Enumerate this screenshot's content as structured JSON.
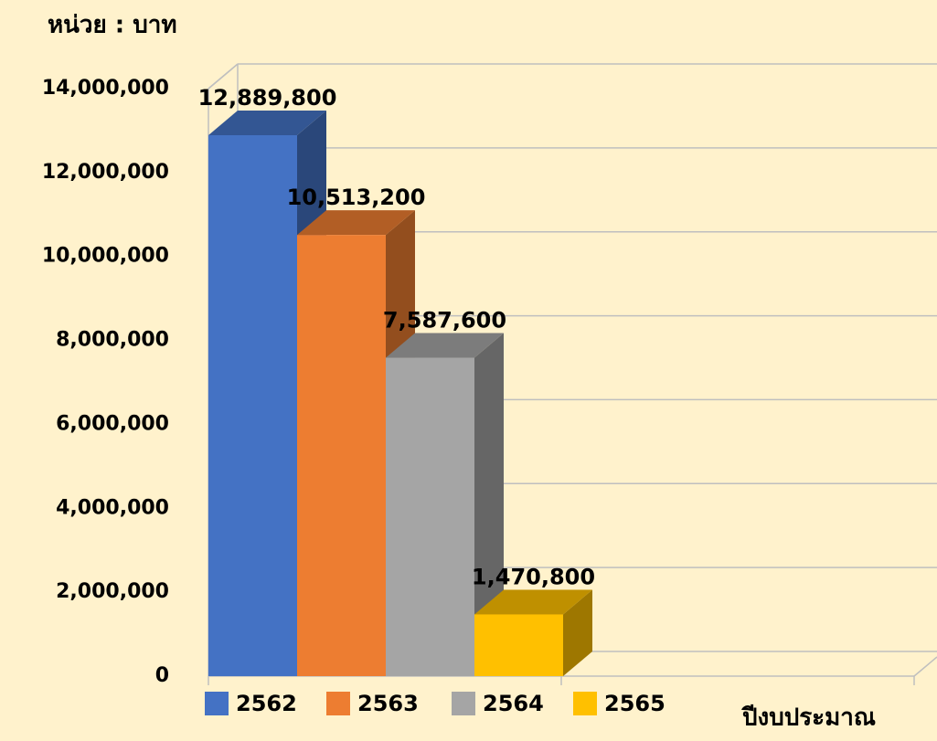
{
  "chart_data": {
    "type": "bar3d",
    "unit_label": "หน่วย : บาท",
    "x_label": "ปีงบประมาณ",
    "categories": [
      "2562",
      "2563",
      "2564",
      "2565"
    ],
    "values": [
      12889800,
      10513200,
      7587600,
      1470800
    ],
    "value_labels": [
      "12,889,800",
      "10,513,200",
      "7,587,600",
      "1,470,800"
    ],
    "colors": [
      "#4472c4",
      "#ed7d31",
      "#a5a5a5",
      "#ffc000"
    ],
    "ylim": [
      0,
      14000000
    ],
    "yticks": [
      0,
      {
        "value": 2000000,
        "label": "2,000,000"
      },
      {
        "value": 4000000,
        "label": "4,000,000"
      },
      {
        "value": 6000000,
        "label": "6,000,000"
      },
      {
        "value": 8000000,
        "label": "8,000,000"
      },
      {
        "value": 10000000,
        "label": "10,000,000"
      },
      {
        "value": 12000000,
        "label": "12,000,000"
      },
      {
        "value": 14000000,
        "label": "14,000,000"
      }
    ],
    "grid": true
  }
}
